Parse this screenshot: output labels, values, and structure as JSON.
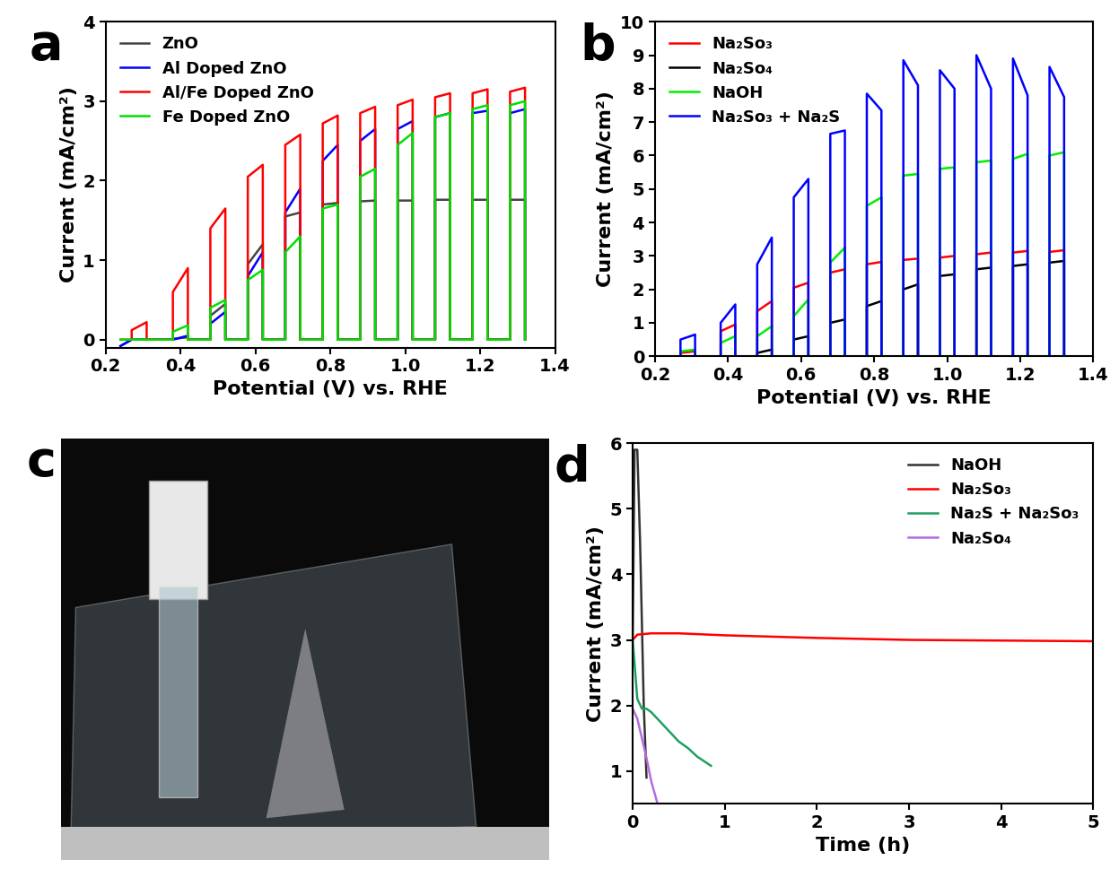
{
  "chart_data": [
    {
      "type": "line",
      "title": "a",
      "x_label": "Potential (V) vs. RHE",
      "y_label": "Current (mA/cm²)",
      "xlim": [
        0.2,
        1.4
      ],
      "xticks": [
        0.2,
        0.4,
        0.6,
        0.8,
        1.0,
        1.2,
        1.4
      ],
      "ylim": [
        -0.1,
        4
      ],
      "yticks": [
        0,
        1,
        2,
        3,
        4
      ],
      "legend": "upper left",
      "x": [
        0.24,
        0.27,
        0.27,
        0.31,
        0.31,
        0.38,
        0.38,
        0.42,
        0.42,
        0.48,
        0.48,
        0.52,
        0.52,
        0.58,
        0.58,
        0.62,
        0.62,
        0.68,
        0.68,
        0.72,
        0.72,
        0.78,
        0.78,
        0.82,
        0.82,
        0.88,
        0.88,
        0.92,
        0.92,
        0.98,
        0.98,
        1.02,
        1.02,
        1.08,
        1.08,
        1.12,
        1.12,
        1.18,
        1.18,
        1.22,
        1.22,
        1.28,
        1.28,
        1.32,
        1.32
      ],
      "series": [
        {
          "name": "ZnO",
          "color": "#444444",
          "values": [
            -0.08,
            0,
            0,
            0,
            0,
            0,
            0.01,
            0.03,
            0,
            0,
            0.3,
            0.45,
            0,
            0,
            0.95,
            1.2,
            0,
            0,
            1.55,
            1.6,
            0,
            0,
            1.7,
            1.72,
            0,
            0,
            1.74,
            1.75,
            0,
            0,
            1.75,
            1.75,
            0,
            0,
            1.76,
            1.76,
            0,
            0,
            1.76,
            1.76,
            0,
            0,
            1.76,
            1.76,
            0
          ]
        },
        {
          "name": "Al Doped ZnO",
          "color": "#0000ff",
          "values": [
            -0.08,
            0,
            0,
            0,
            0,
            0,
            0,
            0.05,
            0,
            0,
            0.2,
            0.35,
            0,
            0,
            0.8,
            1.1,
            0,
            0,
            1.6,
            1.9,
            0,
            0,
            2.25,
            2.45,
            0,
            0,
            2.5,
            2.65,
            0,
            0,
            2.65,
            2.75,
            0,
            0,
            2.8,
            2.85,
            0,
            0,
            2.85,
            2.88,
            0,
            0,
            2.85,
            2.9,
            0
          ]
        },
        {
          "name": "Al/Fe Doped ZnO",
          "color": "#ff0000",
          "values": [
            0,
            0,
            0.12,
            0.22,
            0,
            0,
            0.6,
            0.9,
            0,
            0,
            1.4,
            1.65,
            0,
            0,
            2.05,
            2.2,
            0,
            0,
            2.45,
            2.58,
            0,
            0,
            2.72,
            2.82,
            0,
            0,
            2.85,
            2.93,
            0,
            0,
            2.95,
            3.02,
            0,
            0,
            3.05,
            3.1,
            0,
            0,
            3.1,
            3.15,
            0,
            0,
            3.12,
            3.17,
            0
          ]
        },
        {
          "name": "Fe Doped ZnO",
          "color": "#00e000",
          "values": [
            0,
            0,
            0,
            0,
            0,
            0,
            0.1,
            0.18,
            0,
            0,
            0.4,
            0.5,
            0,
            0,
            0.75,
            0.88,
            0,
            0,
            1.1,
            1.3,
            0,
            0,
            1.65,
            1.7,
            0,
            0,
            2.05,
            2.15,
            0,
            0,
            2.45,
            2.6,
            0,
            0,
            2.8,
            2.85,
            0,
            0,
            2.9,
            2.95,
            0,
            0,
            2.95,
            3.0,
            0
          ]
        }
      ]
    },
    {
      "type": "line",
      "title": "b",
      "x_label": "Potential (V) vs. RHE",
      "y_label": "Current (mA/cm²)",
      "xlim": [
        0.2,
        1.4
      ],
      "xticks": [
        0.2,
        0.4,
        0.6,
        0.8,
        1.0,
        1.2,
        1.4
      ],
      "ylim": [
        0,
        10
      ],
      "yticks": [
        0,
        1,
        2,
        3,
        4,
        5,
        6,
        7,
        8,
        9,
        10
      ],
      "legend": "upper left",
      "x": [
        0.24,
        0.27,
        0.27,
        0.31,
        0.31,
        0.38,
        0.38,
        0.42,
        0.42,
        0.48,
        0.48,
        0.52,
        0.52,
        0.58,
        0.58,
        0.62,
        0.62,
        0.68,
        0.68,
        0.72,
        0.72,
        0.78,
        0.78,
        0.82,
        0.82,
        0.88,
        0.88,
        0.92,
        0.92,
        0.98,
        0.98,
        1.02,
        1.02,
        1.08,
        1.08,
        1.12,
        1.12,
        1.18,
        1.18,
        1.22,
        1.22,
        1.28,
        1.28,
        1.32,
        1.32
      ],
      "series": [
        {
          "name": "Na₂So₃",
          "color": "#ff0000",
          "values": [
            0,
            0,
            0.1,
            0.15,
            0,
            0,
            0.75,
            0.95,
            0,
            0,
            1.35,
            1.65,
            0,
            0,
            2.05,
            2.2,
            0,
            0,
            2.5,
            2.6,
            0,
            0,
            2.75,
            2.82,
            0,
            0,
            2.88,
            2.92,
            0,
            0,
            2.95,
            3.0,
            0,
            0,
            3.05,
            3.1,
            0,
            0,
            3.1,
            3.15,
            0,
            0,
            3.12,
            3.17,
            0
          ]
        },
        {
          "name": "Na₂So₄",
          "color": "#000000",
          "values": [
            0,
            0,
            0,
            0,
            0,
            0,
            0,
            0,
            0,
            0,
            0.1,
            0.2,
            0,
            0,
            0.5,
            0.6,
            0,
            0,
            1.0,
            1.1,
            0,
            0,
            1.5,
            1.65,
            0,
            0,
            2.0,
            2.15,
            0,
            0,
            2.4,
            2.45,
            0,
            0,
            2.6,
            2.65,
            0,
            0,
            2.7,
            2.75,
            0,
            0,
            2.8,
            2.85,
            0
          ]
        },
        {
          "name": "NaOH",
          "color": "#00ee00",
          "values": [
            0,
            0,
            0.15,
            0.2,
            0,
            0,
            0.4,
            0.6,
            0,
            0,
            0.6,
            0.9,
            0,
            0,
            1.2,
            1.7,
            0,
            0,
            2.8,
            3.25,
            0,
            0,
            4.5,
            4.75,
            0,
            0,
            5.4,
            5.45,
            0,
            0,
            5.6,
            5.65,
            0,
            0,
            5.8,
            5.85,
            0,
            0,
            5.9,
            6.05,
            0,
            0,
            6.0,
            6.1,
            0
          ]
        },
        {
          "name": "Na₂So₃ + Na₂S",
          "color": "#0000ff",
          "values": [
            0,
            0,
            0.5,
            0.65,
            0,
            0,
            1.0,
            1.55,
            0,
            0,
            2.75,
            3.55,
            0,
            0,
            4.75,
            5.3,
            0,
            0,
            6.65,
            6.75,
            0,
            0,
            7.85,
            7.35,
            0,
            0,
            8.85,
            8.1,
            0,
            0,
            8.55,
            8.0,
            0,
            0,
            9.0,
            8.0,
            0,
            0,
            8.9,
            7.8,
            0,
            0,
            8.65,
            7.75,
            0
          ]
        }
      ]
    },
    {
      "type": "image",
      "title": "c"
    },
    {
      "type": "line",
      "title": "d",
      "x_label": "Time (h)",
      "y_label": "Current (mA/cm²)",
      "xlim": [
        0,
        5
      ],
      "xticks": [
        0,
        1,
        2,
        3,
        4,
        5
      ],
      "ylim": [
        0.5,
        6
      ],
      "yticks": [
        1,
        2,
        3,
        4,
        5,
        6
      ],
      "legend": "upper right",
      "series": [
        {
          "name": "NaOH",
          "color": "#333333",
          "x": [
            0.0,
            0.02,
            0.05,
            0.08,
            0.12,
            0.15
          ],
          "values": [
            3.0,
            5.9,
            5.9,
            4.5,
            2.0,
            0.9
          ]
        },
        {
          "name": "Na₂So₃",
          "color": "#ff0000",
          "x": [
            0,
            0.05,
            0.2,
            0.5,
            1,
            2,
            3,
            4,
            5
          ],
          "values": [
            3.0,
            3.08,
            3.1,
            3.1,
            3.07,
            3.03,
            3.0,
            2.99,
            2.98
          ]
        },
        {
          "name": "Na₂S + Na₂So₃",
          "color": "#20a060",
          "x": [
            0,
            0.05,
            0.1,
            0.15,
            0.2,
            0.3,
            0.4,
            0.5,
            0.6,
            0.7,
            0.85
          ],
          "values": [
            3.0,
            2.1,
            1.95,
            1.95,
            1.9,
            1.75,
            1.6,
            1.45,
            1.35,
            1.22,
            1.08
          ]
        },
        {
          "name": "Na₂So₄",
          "color": "#b46be0",
          "x": [
            0,
            0.05,
            0.1,
            0.15,
            0.2,
            0.27
          ],
          "values": [
            1.95,
            1.8,
            1.5,
            1.2,
            0.85,
            0.5
          ]
        }
      ]
    }
  ]
}
